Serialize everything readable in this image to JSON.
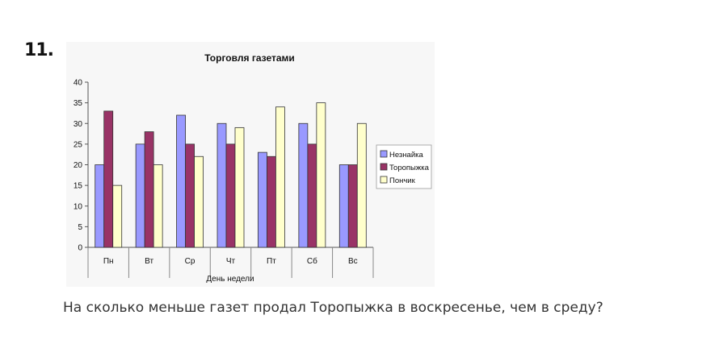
{
  "problem": {
    "number": "11.",
    "question": "На сколько меньше газет продал Торопыжка в воскресенье, чем в среду?"
  },
  "chart_data": {
    "type": "bar",
    "title": "Торговля газетами",
    "xlabel": "День недели",
    "ylabel": "",
    "ylim": [
      0,
      40
    ],
    "yticks": [
      0,
      5,
      10,
      15,
      20,
      25,
      30,
      35,
      40
    ],
    "grid": false,
    "legend_position": "right",
    "categories": [
      "Пн",
      "Вт",
      "Ср",
      "Чт",
      "Пт",
      "Сб",
      "Вс"
    ],
    "series": [
      {
        "name": "Незнайка",
        "color": "#9999ff",
        "values": [
          20,
          25,
          32,
          30,
          23,
          30,
          20
        ]
      },
      {
        "name": "Торопыжка",
        "color": "#993366",
        "values": [
          33,
          28,
          25,
          25,
          22,
          25,
          20
        ]
      },
      {
        "name": "Пончик",
        "color": "#ffffcc",
        "values": [
          15,
          20,
          22,
          29,
          34,
          35,
          30
        ]
      }
    ]
  }
}
